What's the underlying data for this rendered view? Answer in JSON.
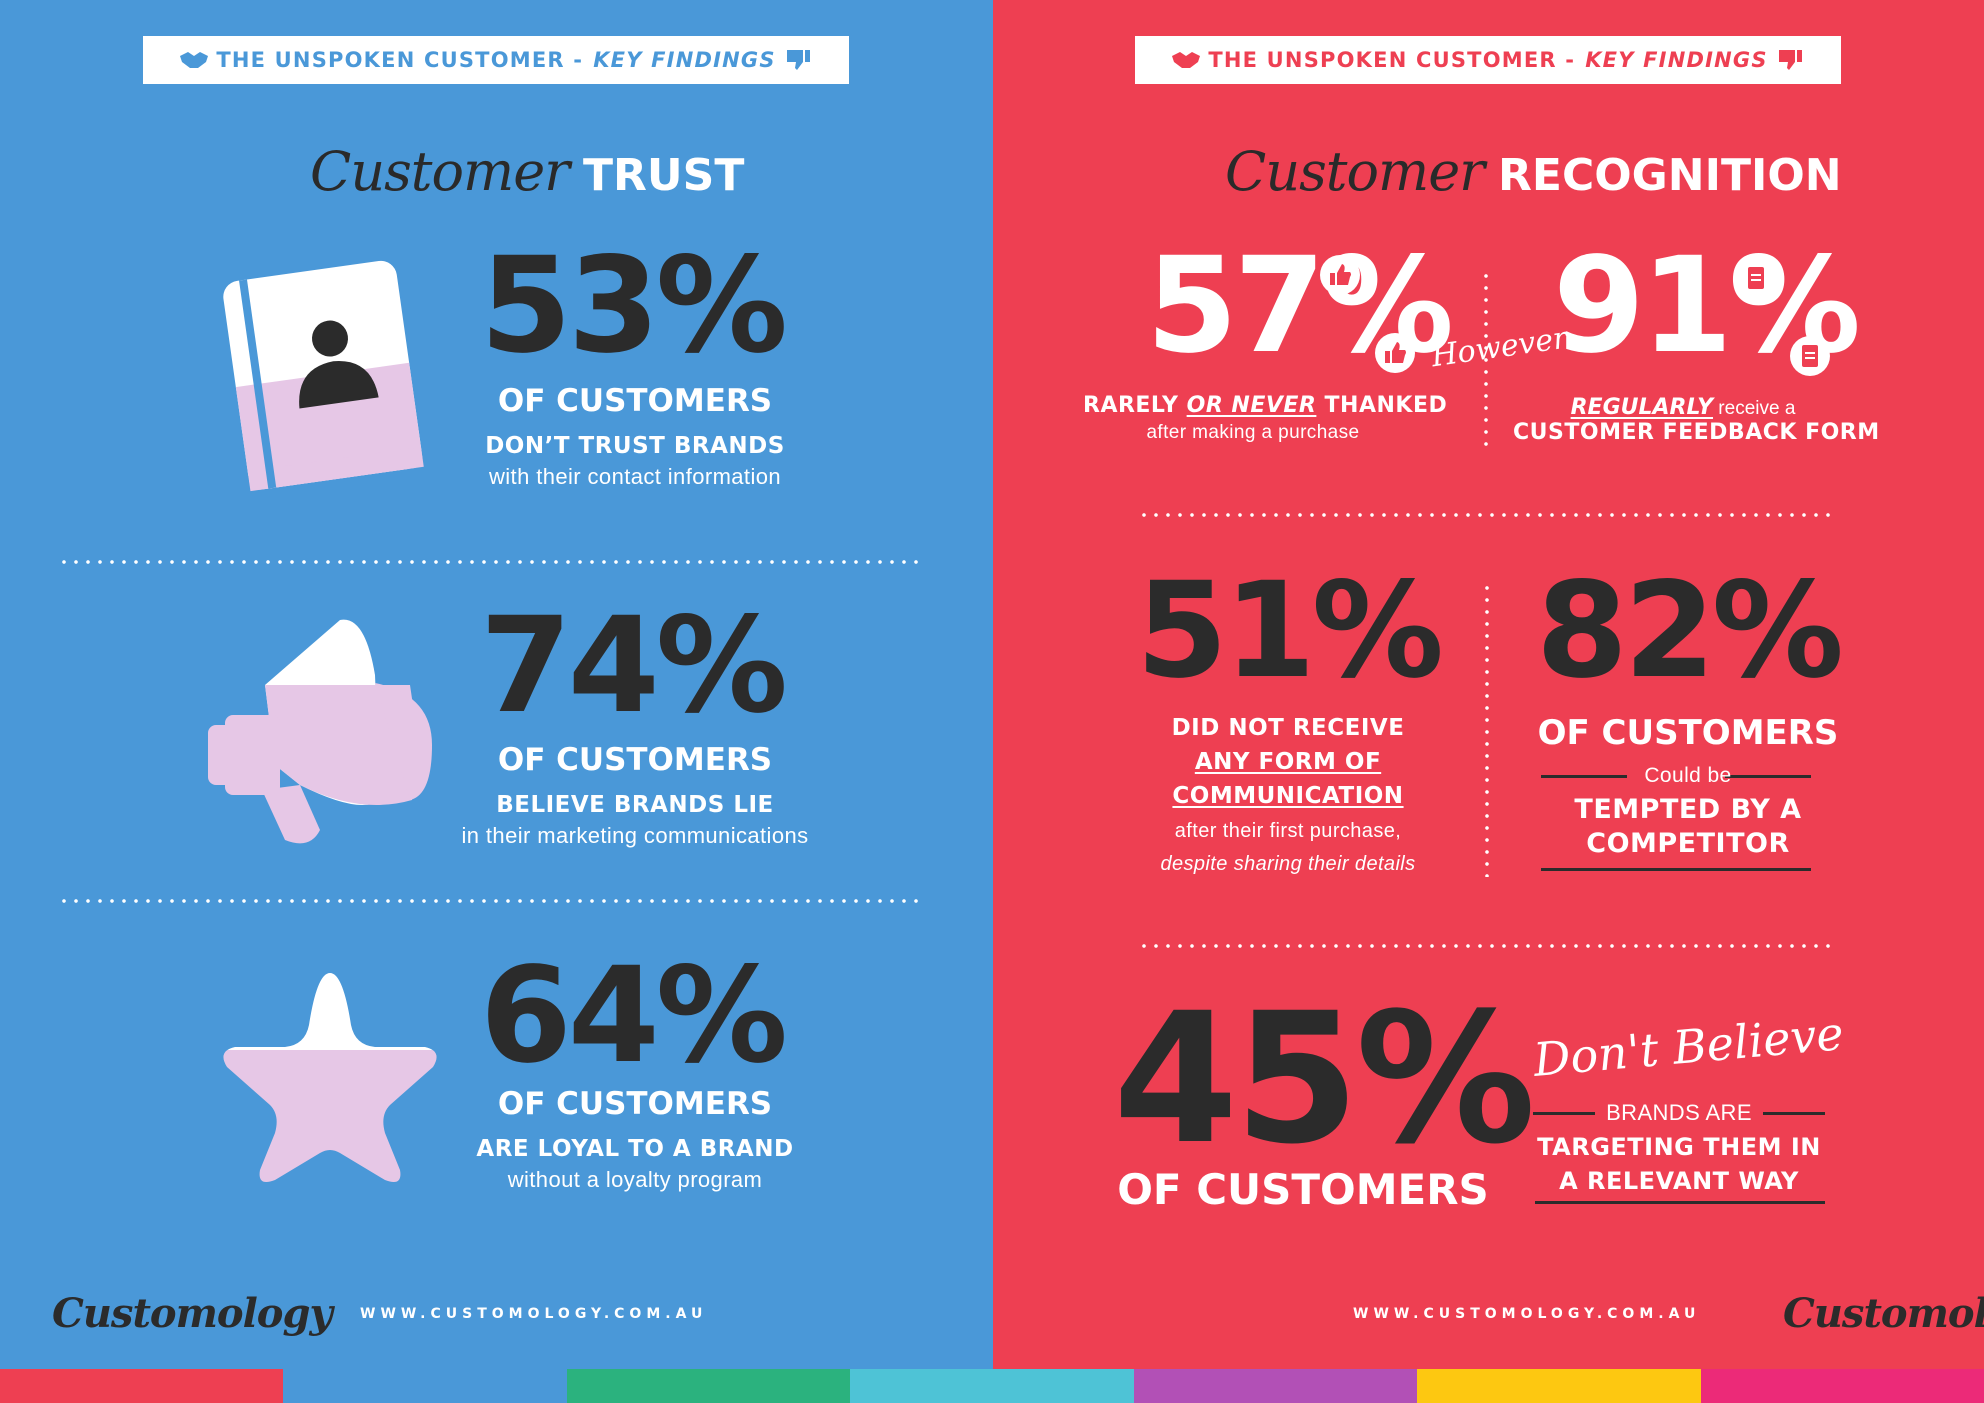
{
  "banner": {
    "prefix": "THE UNSPOKEN CUSTOMER - ",
    "emphasis": "KEY FINDINGS"
  },
  "left": {
    "title_script": "Customer",
    "title": "TRUST",
    "stats": [
      {
        "value": "53%",
        "line1": "OF CUSTOMERS",
        "line2": "DON’T TRUST BRANDS",
        "line3": "with their contact information"
      },
      {
        "value": "74%",
        "line1": "OF CUSTOMERS",
        "line2": "BELIEVE BRANDS LIE",
        "line3": "in their marketing communications"
      },
      {
        "value": "64%",
        "line1": "OF CUSTOMERS",
        "line2": "ARE LOYAL TO A BRAND",
        "line3": "without a loyalty program"
      }
    ],
    "icons": [
      "contact-book-icon",
      "megaphone-icon",
      "star-icon"
    ]
  },
  "right": {
    "title_script": "Customer",
    "title": "RECOGNITION",
    "stat_57": {
      "value": "57%",
      "a": "RARELY ",
      "b": "OR NEVER",
      "c": " THANKED",
      "sub": "after making a purchase"
    },
    "however": "However",
    "stat_91": {
      "value": "91%",
      "a": "REGULARLY",
      "b": " receive a",
      "sub": "CUSTOMER FEEDBACK FORM"
    },
    "stat_51": {
      "value": "51%",
      "l1": "DID NOT RECEIVE",
      "l2": "ANY FORM OF",
      "l3": "COMMUNICATION",
      "l4": "after their first purchase,",
      "l5": "despite sharing their details"
    },
    "stat_82": {
      "value": "82%",
      "l1": "OF CUSTOMERS",
      "l2": "Could be",
      "l3": "TEMPTED BY A",
      "l4": "COMPETITOR"
    },
    "stat_45": {
      "value": "45%",
      "l1": "OF CUSTOMERS",
      "script": "Don't Believe",
      "l2": "BRANDS ARE",
      "l3": "TARGETING THEM IN",
      "l4": "A RELEVANT WAY"
    }
  },
  "footer": {
    "url": "WWW.CUSTOMOLOGY.COM.AU",
    "logo": "Customology"
  },
  "colors": {
    "blue": "#4a98d8",
    "red": "#ee3f52",
    "dark": "#2b2b2b",
    "lilac": "#e6c7e6"
  },
  "stripes": [
    "#ee3f52",
    "#4a98d8",
    "#2bb27e",
    "#4ec3d6",
    "#b250b6",
    "#fdc811",
    "#ec2a78"
  ]
}
